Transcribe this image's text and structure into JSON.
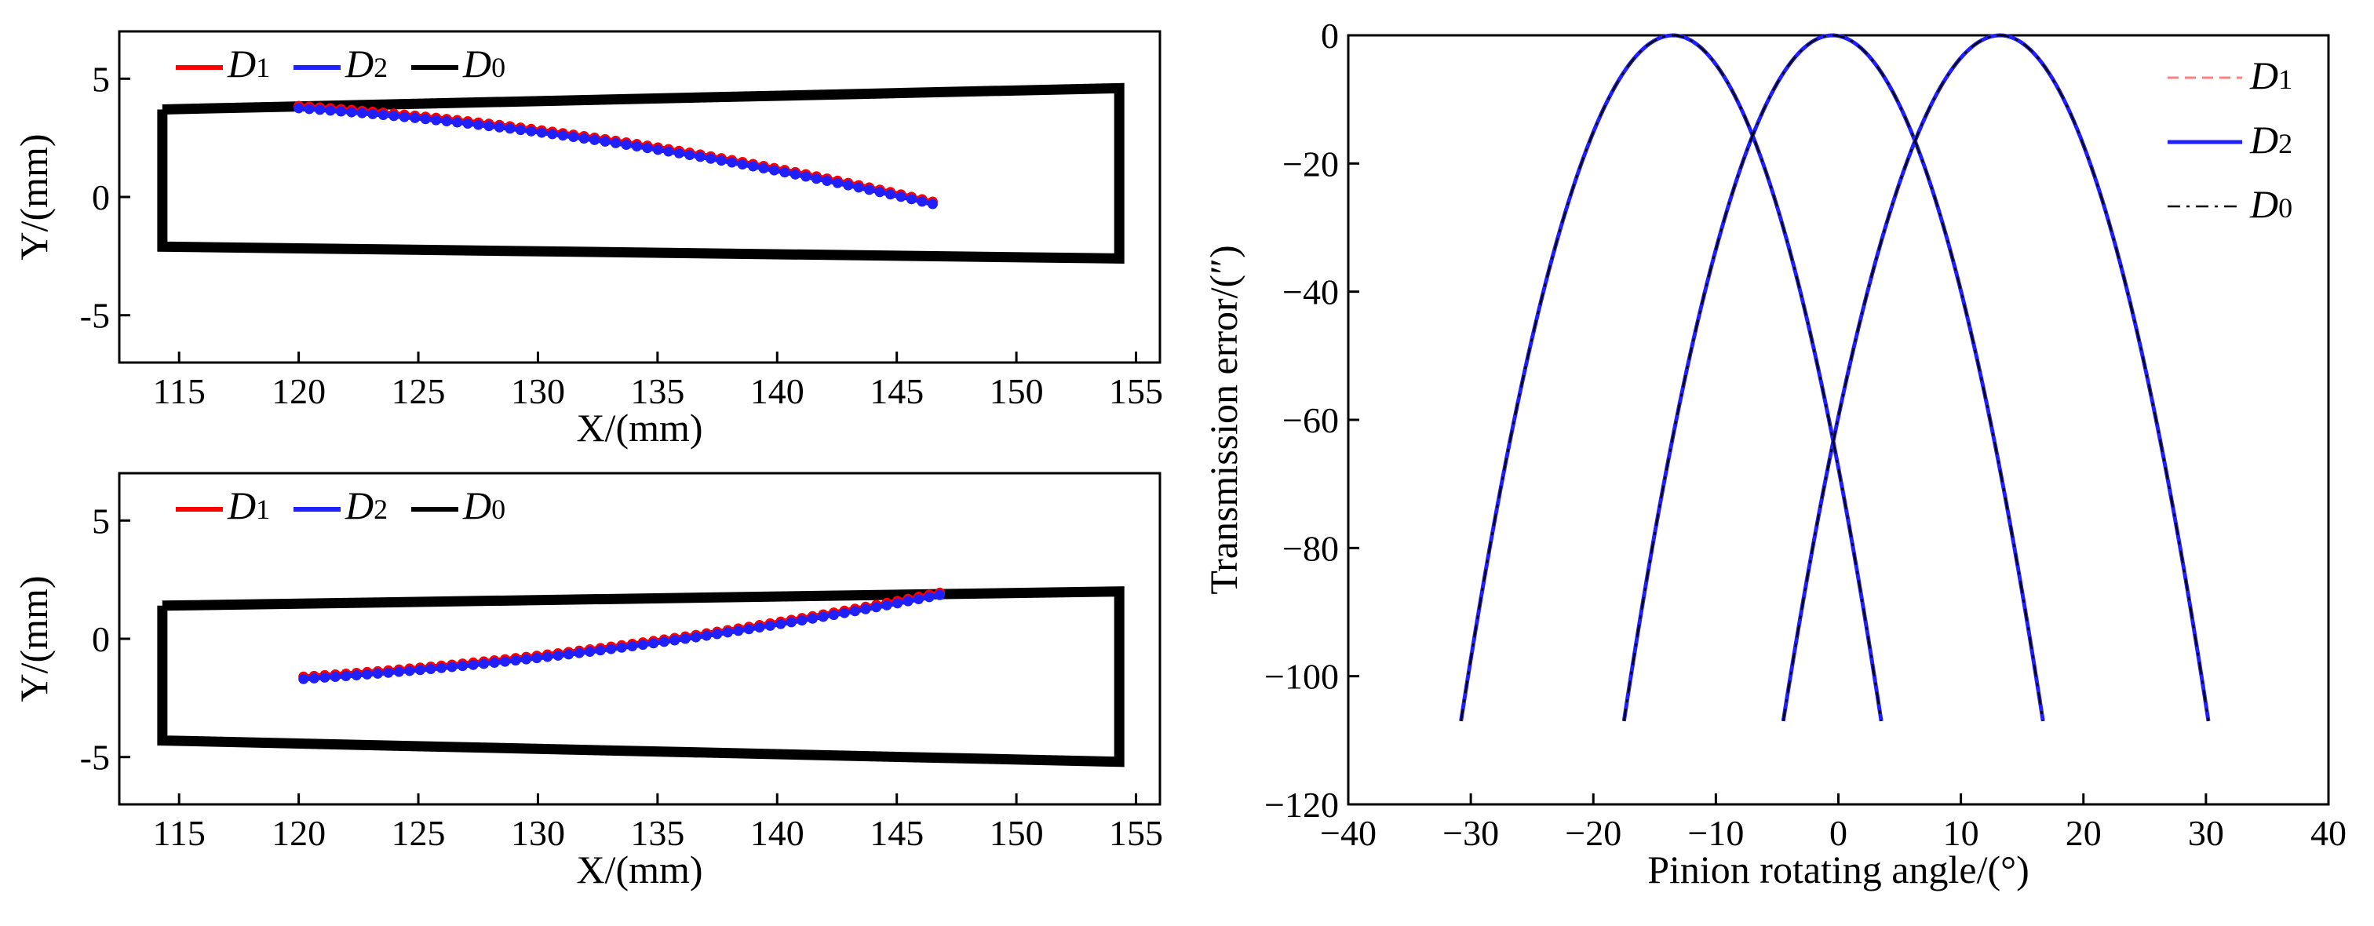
{
  "chart_data": [
    {
      "id": "top-left",
      "type": "line",
      "xlabel": "X/(mm)",
      "ylabel": "Y/(mm)",
      "xlim": [
        112.5,
        156
      ],
      "ylim": [
        -7,
        7
      ],
      "xticks": [
        115,
        120,
        125,
        130,
        135,
        140,
        145,
        150,
        155
      ],
      "yticks": [
        -5,
        0,
        5
      ],
      "legend": {
        "position": "top-left",
        "entries": [
          {
            "name": "D",
            "sub": "1",
            "color": "#ff0000"
          },
          {
            "name": "D",
            "sub": "2",
            "color": "#2020ff"
          },
          {
            "name": "D",
            "sub": "0",
            "color": "#000000"
          }
        ]
      },
      "boundary": {
        "name": "D0",
        "color": "#000000",
        "x": [
          114.3,
          154.3,
          154.3,
          114.3,
          114.3
        ],
        "y": [
          3.7,
          4.6,
          -2.6,
          -2.1,
          3.7
        ]
      },
      "series": [
        {
          "name": "D1",
          "color": "#ff0000",
          "x_start": 120.0,
          "x_end": 146.5,
          "y_start": 3.85,
          "y_end": -0.2,
          "curve": 0.55
        },
        {
          "name": "D2",
          "color": "#2020ff",
          "x_start": 120.0,
          "x_end": 146.5,
          "y_start": 3.75,
          "y_end": -0.3,
          "curve": 0.55
        }
      ]
    },
    {
      "id": "bottom-left",
      "type": "line",
      "xlabel": "X/(mm)",
      "ylabel": "Y/(mm)",
      "xlim": [
        112.5,
        156
      ],
      "ylim": [
        -7,
        7
      ],
      "xticks": [
        115,
        120,
        125,
        130,
        135,
        140,
        145,
        150,
        155
      ],
      "yticks": [
        -5,
        0,
        5
      ],
      "legend": {
        "position": "top-left",
        "entries": [
          {
            "name": "D",
            "sub": "1",
            "color": "#ff0000"
          },
          {
            "name": "D",
            "sub": "2",
            "color": "#2020ff"
          },
          {
            "name": "D",
            "sub": "0",
            "color": "#000000"
          }
        ]
      },
      "boundary": {
        "name": "D0",
        "color": "#000000",
        "x": [
          114.3,
          154.3,
          154.3,
          114.3,
          114.3
        ],
        "y": [
          1.4,
          2.0,
          -5.2,
          -4.3,
          1.4
        ]
      },
      "series": [
        {
          "name": "D1",
          "color": "#ff0000",
          "x_start": 120.2,
          "x_end": 146.8,
          "y_start": -1.6,
          "y_end": 1.95,
          "curve": -0.45
        },
        {
          "name": "D2",
          "color": "#2020ff",
          "x_start": 120.2,
          "x_end": 146.8,
          "y_start": -1.7,
          "y_end": 1.85,
          "curve": -0.45
        }
      ]
    },
    {
      "id": "right",
      "type": "line",
      "xlabel": "Pinion rotating angle/(°)",
      "ylabel": "Transmission error/(″)",
      "xlim": [
        -40,
        40
      ],
      "ylim": [
        -120,
        0
      ],
      "xticks": [
        -40,
        -30,
        -20,
        -10,
        0,
        10,
        20,
        30,
        40
      ],
      "xtick_labels": [
        "−40",
        "−30",
        "−20",
        "−10",
        "0",
        "10",
        "20",
        "30",
        "40"
      ],
      "yticks": [
        0,
        -20,
        -40,
        -60,
        -80,
        -100,
        -120
      ],
      "ytick_labels": [
        "0",
        "−20",
        "−40",
        "−60",
        "−80",
        "−100",
        "−120"
      ],
      "legend": {
        "position": "top-right",
        "entries": [
          {
            "name": "D",
            "sub": "1",
            "color": "#ff8080",
            "style": "dashed"
          },
          {
            "name": "D",
            "sub": "2",
            "color": "#2020ff",
            "style": "solid"
          },
          {
            "name": "D",
            "sub": "0",
            "color": "#000000",
            "style": "dashdot"
          }
        ]
      },
      "parabolas": [
        {
          "vertex_x": -13.5,
          "x_start": -30.8,
          "x_end": 3.5,
          "min_y": -107
        },
        {
          "vertex_x": -0.5,
          "x_start": -17.5,
          "x_end": 16.7,
          "min_y": -107
        },
        {
          "vertex_x": 13.2,
          "x_start": -4.5,
          "x_end": 30.2,
          "min_y": -107
        }
      ],
      "series": [
        {
          "name": "D1",
          "color": "#ff8080",
          "style": "dashed"
        },
        {
          "name": "D2",
          "color": "#2020ff",
          "style": "solid"
        },
        {
          "name": "D0",
          "color": "#000000",
          "style": "dashdot"
        }
      ]
    }
  ]
}
